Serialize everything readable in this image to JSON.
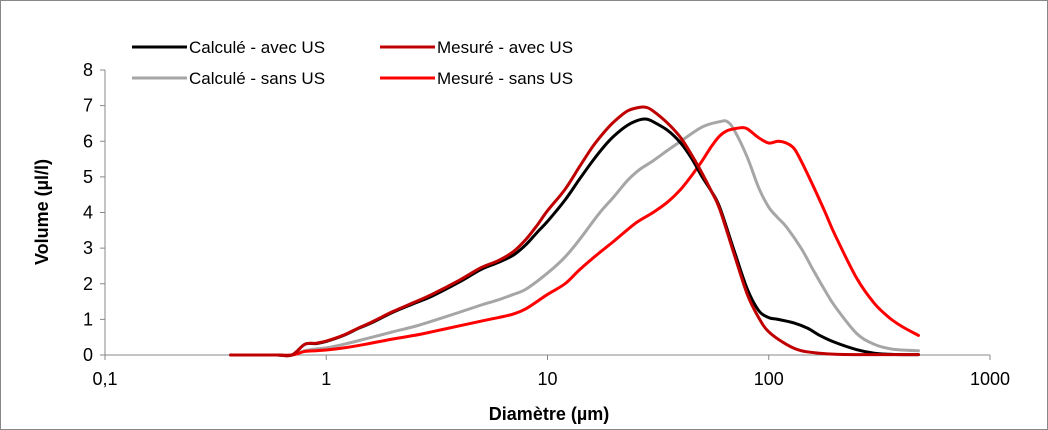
{
  "chart_data": {
    "type": "line",
    "title": "",
    "xlabel": "Diamètre (µm)",
    "ylabel": "Volume (µl/l)",
    "xscale": "log",
    "xlim": [
      0.1,
      1000
    ],
    "ylim": [
      0,
      8
    ],
    "xticks": [
      "0,1",
      "1",
      "10",
      "100",
      "1000"
    ],
    "yticks": [
      "0",
      "1",
      "2",
      "3",
      "4",
      "5",
      "6",
      "7",
      "8"
    ],
    "grid": false,
    "legend_position": "top-left",
    "series": [
      {
        "name": "Calculé - avec US",
        "color": "#000000",
        "x": [
          0.37,
          0.5,
          0.6,
          0.7,
          0.8,
          0.9,
          1.0,
          1.2,
          1.4,
          1.6,
          2.0,
          2.5,
          3.0,
          4.0,
          5.0,
          6.0,
          7.0,
          8.0,
          9.0,
          10,
          12,
          14,
          16,
          18,
          20,
          23,
          26,
          28,
          30,
          35,
          40,
          45,
          50,
          55,
          60,
          70,
          80,
          90,
          100,
          110,
          130,
          150,
          170,
          200,
          250,
          300,
          350,
          400,
          475
        ],
        "y": [
          0,
          0,
          0,
          0,
          0.3,
          0.32,
          0.38,
          0.55,
          0.75,
          0.9,
          1.2,
          1.45,
          1.65,
          2.05,
          2.4,
          2.6,
          2.8,
          3.1,
          3.45,
          3.75,
          4.35,
          4.95,
          5.45,
          5.85,
          6.15,
          6.45,
          6.6,
          6.62,
          6.55,
          6.3,
          5.95,
          5.5,
          5.0,
          4.6,
          4.15,
          2.9,
          1.85,
          1.25,
          1.05,
          1.0,
          0.9,
          0.75,
          0.55,
          0.35,
          0.15,
          0.05,
          0.02,
          0.01,
          0.01
        ]
      },
      {
        "name": "Calculé - sans US",
        "color": "#a6a6a6",
        "x": [
          0.37,
          0.5,
          0.6,
          0.7,
          0.8,
          0.9,
          1.0,
          1.2,
          1.5,
          2.0,
          2.5,
          3.0,
          4.0,
          5.0,
          6.0,
          7.0,
          8.0,
          10,
          12,
          14,
          17,
          20,
          23,
          26,
          30,
          35,
          40,
          50,
          60,
          65,
          70,
          80,
          90,
          100,
          110,
          120,
          140,
          160,
          180,
          200,
          250,
          300,
          350,
          400,
          475
        ],
        "y": [
          0,
          0,
          0,
          0,
          0.12,
          0.17,
          0.2,
          0.3,
          0.45,
          0.65,
          0.8,
          0.95,
          1.2,
          1.4,
          1.55,
          1.7,
          1.85,
          2.3,
          2.75,
          3.25,
          3.95,
          4.45,
          4.9,
          5.2,
          5.45,
          5.75,
          6.0,
          6.4,
          6.55,
          6.55,
          6.3,
          5.55,
          4.7,
          4.15,
          3.85,
          3.6,
          3.0,
          2.35,
          1.8,
          1.35,
          0.6,
          0.3,
          0.18,
          0.14,
          0.12
        ]
      },
      {
        "name": "Mesuré - avec US",
        "color": "#c00000",
        "x": [
          0.37,
          0.5,
          0.6,
          0.7,
          0.8,
          0.9,
          1.0,
          1.2,
          1.4,
          1.6,
          2.0,
          2.5,
          3.0,
          4.0,
          5.0,
          6.0,
          7.0,
          8.0,
          9.0,
          10,
          12,
          14,
          16,
          18,
          20,
          23,
          26,
          28,
          30,
          35,
          40,
          45,
          50,
          55,
          60,
          70,
          80,
          90,
          100,
          120,
          140,
          170,
          200,
          250,
          300,
          400,
          475
        ],
        "y": [
          0,
          0,
          0,
          0,
          0.3,
          0.33,
          0.39,
          0.56,
          0.76,
          0.92,
          1.22,
          1.48,
          1.7,
          2.1,
          2.45,
          2.65,
          2.9,
          3.25,
          3.65,
          4.05,
          4.65,
          5.3,
          5.85,
          6.25,
          6.55,
          6.85,
          6.95,
          6.95,
          6.85,
          6.5,
          6.1,
          5.6,
          5.1,
          4.6,
          4.1,
          2.8,
          1.7,
          1.05,
          0.65,
          0.3,
          0.12,
          0.05,
          0.02,
          0.01,
          0.01,
          0.01,
          0.01
        ]
      },
      {
        "name": "Mesuré - sans US",
        "color": "#ff0000",
        "x": [
          0.37,
          0.5,
          0.6,
          0.7,
          0.8,
          0.9,
          1.0,
          1.2,
          1.5,
          2.0,
          2.5,
          3.0,
          4.0,
          5.0,
          6.0,
          7.0,
          8.0,
          10,
          12,
          14,
          17,
          20,
          25,
          30,
          35,
          40,
          45,
          50,
          55,
          60,
          65,
          70,
          75,
          80,
          90,
          100,
          110,
          120,
          130,
          140,
          160,
          180,
          200,
          250,
          300,
          350,
          400,
          475
        ],
        "y": [
          0,
          0,
          0,
          0,
          0.1,
          0.12,
          0.14,
          0.2,
          0.3,
          0.45,
          0.55,
          0.65,
          0.82,
          0.95,
          1.05,
          1.15,
          1.3,
          1.7,
          2.0,
          2.4,
          2.85,
          3.2,
          3.7,
          4.0,
          4.3,
          4.65,
          5.05,
          5.45,
          5.85,
          6.15,
          6.3,
          6.35,
          6.38,
          6.35,
          6.1,
          5.95,
          6.0,
          5.95,
          5.8,
          5.45,
          4.7,
          4.0,
          3.35,
          2.15,
          1.45,
          1.05,
          0.8,
          0.55
        ]
      }
    ]
  }
}
